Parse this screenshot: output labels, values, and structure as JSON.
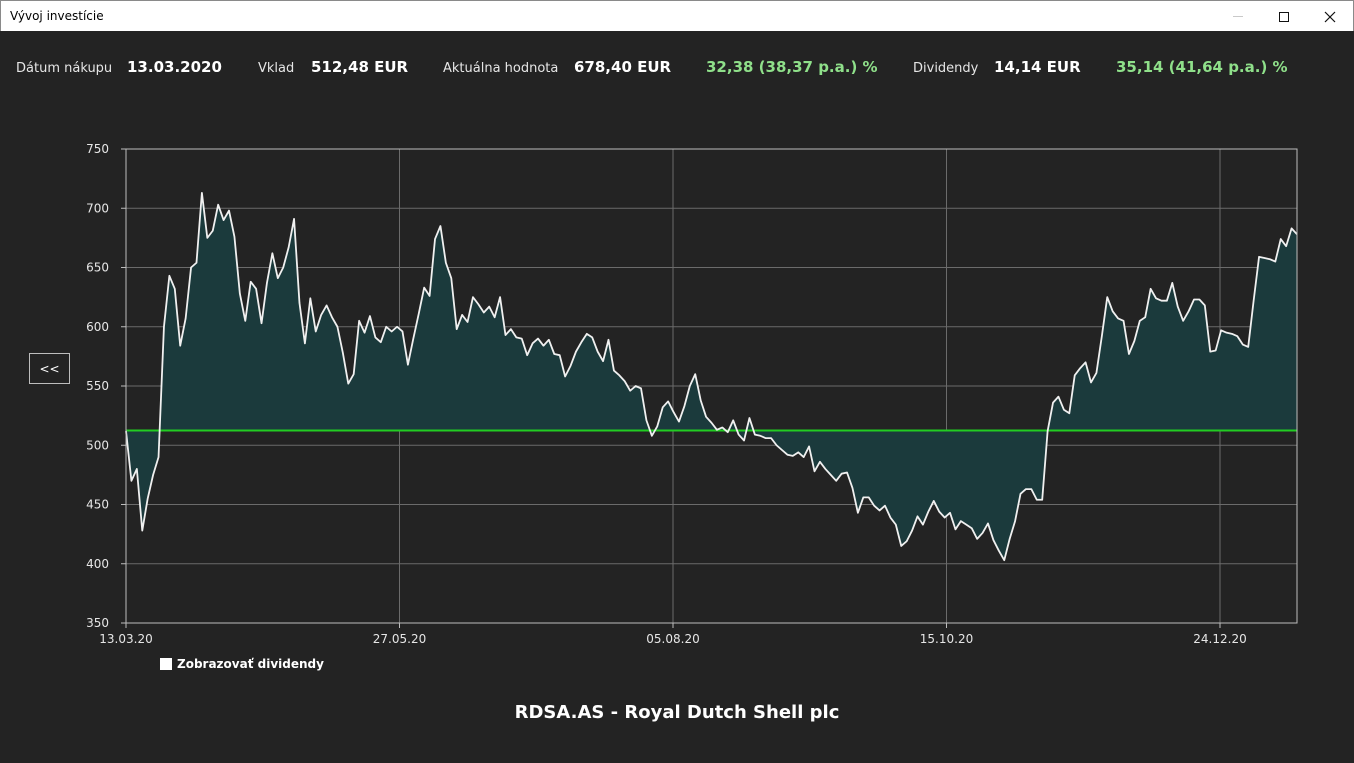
{
  "window": {
    "title": "Vývoj investície"
  },
  "stats": {
    "purchase_date_label": "Dátum nákupu",
    "purchase_date_value": "13.03.2020",
    "deposit_label": "Vklad",
    "deposit_value": "512,48 EUR",
    "current_value_label": "Aktuálna hodnota",
    "current_value_value": "678,40 EUR",
    "gain_value": "32,38 (38,37 p.a.) %",
    "dividends_label": "Dividendy",
    "dividends_value": "14,14 EUR",
    "total_gain_value": "35,14 (41,64 p.a.) %"
  },
  "back_button": {
    "label": "<<"
  },
  "legend": {
    "show_dividends_label": "Zobrazovať dividendy",
    "checked": false
  },
  "chart_data": {
    "type": "area",
    "title": "RDSA.AS - Royal Dutch Shell plc",
    "ylim": [
      350,
      750
    ],
    "yticks": [
      350,
      400,
      450,
      500,
      550,
      600,
      650,
      700,
      750
    ],
    "xticks": [
      "13.03.20",
      "27.05.20",
      "05.08.20",
      "15.10.20",
      "24.12.20"
    ],
    "grid": true,
    "baseline": 512.48,
    "colors": {
      "line": "#f0f0f0",
      "fill": "#1b3a3c",
      "baseline": "#22cc22",
      "grid": "#6b6b6b",
      "axis": "#bdbdbd",
      "tick_text": "#e6e6e6"
    },
    "series": [
      {
        "values": [
          512,
          470,
          480,
          428,
          455,
          475,
          490,
          600,
          643,
          632,
          584,
          607,
          650,
          654,
          713,
          675,
          681,
          703,
          690,
          698,
          676,
          628,
          605,
          638,
          632,
          603,
          637,
          662,
          641,
          650,
          667,
          691,
          620,
          586,
          624,
          596,
          610,
          618,
          608,
          600,
          578,
          552,
          560,
          605,
          595,
          609,
          591,
          587,
          600,
          596,
          600,
          596,
          568,
          590,
          611,
          633,
          626,
          674,
          685,
          654,
          641,
          598,
          610,
          604,
          625,
          619,
          612,
          617,
          608,
          625,
          593,
          598,
          591,
          590,
          576,
          586,
          590,
          584,
          589,
          577,
          576,
          558,
          567,
          579,
          587,
          594,
          591,
          579,
          571,
          589,
          563,
          559,
          554,
          546,
          550,
          548,
          521,
          508,
          516,
          532,
          537,
          528,
          520,
          533,
          550,
          560,
          538,
          524,
          519,
          513,
          515,
          511,
          521,
          509,
          504,
          523,
          509,
          508,
          506,
          506,
          500,
          496,
          492,
          491,
          494,
          490,
          499,
          478,
          486,
          480,
          475,
          470,
          476,
          477,
          464,
          443,
          456,
          456,
          449,
          445,
          449,
          439,
          433,
          415,
          419,
          428,
          440,
          433,
          444,
          453,
          444,
          439,
          443,
          429,
          436,
          433,
          430,
          421,
          426,
          434,
          420,
          411,
          403,
          421,
          436,
          459,
          463,
          463,
          454,
          454,
          512,
          536,
          541,
          530,
          527,
          559,
          565,
          570,
          553,
          561,
          592,
          625,
          613,
          607,
          605,
          577,
          588,
          605,
          608,
          632,
          624,
          622,
          622,
          637,
          617,
          605,
          613,
          623,
          623,
          618,
          579,
          580,
          597,
          595,
          594,
          592,
          585,
          583,
          622,
          659,
          658,
          657,
          655,
          674,
          668,
          683,
          678
        ]
      }
    ]
  }
}
